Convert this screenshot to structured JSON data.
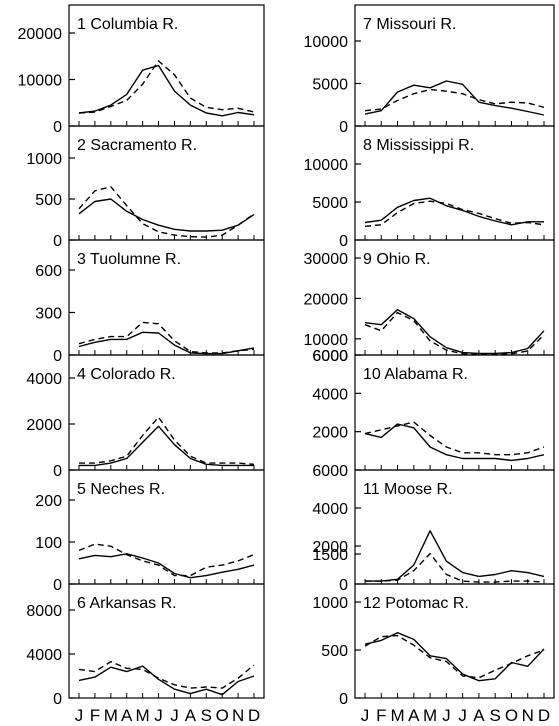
{
  "months": [
    "J",
    "F",
    "M",
    "A",
    "M",
    "J",
    "J",
    "A",
    "S",
    "O",
    "N",
    "D"
  ],
  "chart_data": [
    {
      "type": "line",
      "title": "1 Columbia R.",
      "ylim": [
        0,
        20000
      ],
      "yticks": [
        "0",
        "10000",
        "20000"
      ],
      "series": [
        {
          "style": "solid",
          "values": [
            2800,
            3200,
            4500,
            6800,
            12000,
            13000,
            7500,
            4500,
            2800,
            2200,
            2900,
            2400
          ]
        },
        {
          "style": "dashed",
          "values": [
            2800,
            3000,
            4200,
            5500,
            9000,
            14000,
            11000,
            6000,
            4000,
            3500,
            3800,
            3000
          ]
        }
      ]
    },
    {
      "type": "line",
      "title": "2 Sacramento R.",
      "ylim": [
        0,
        1000
      ],
      "yticks": [
        "0",
        "500",
        "1000"
      ],
      "series": [
        {
          "style": "solid",
          "values": [
            320,
            470,
            500,
            350,
            250,
            180,
            130,
            110,
            110,
            120,
            180,
            310
          ]
        },
        {
          "style": "dashed",
          "values": [
            380,
            600,
            650,
            420,
            200,
            100,
            60,
            40,
            35,
            60,
            180,
            320
          ]
        }
      ]
    },
    {
      "type": "line",
      "title": "3 Tuolumne R.",
      "ylim": [
        0,
        600
      ],
      "yticks": [
        "0",
        "300",
        "600"
      ],
      "series": [
        {
          "style": "solid",
          "values": [
            60,
            90,
            110,
            110,
            160,
            155,
            70,
            15,
            10,
            10,
            30,
            50
          ]
        },
        {
          "style": "dashed",
          "values": [
            80,
            110,
            130,
            130,
            230,
            220,
            100,
            25,
            15,
            15,
            30,
            40
          ]
        }
      ]
    },
    {
      "type": "line",
      "title": "4 Colorado R.",
      "ylim": [
        0,
        4000
      ],
      "yticks": [
        "0",
        "2000",
        "4000"
      ],
      "series": [
        {
          "style": "solid",
          "values": [
            200,
            200,
            300,
            500,
            1200,
            1900,
            1100,
            500,
            250,
            200,
            200,
            200
          ]
        },
        {
          "style": "dashed",
          "values": [
            300,
            300,
            400,
            600,
            1500,
            2300,
            1300,
            600,
            300,
            300,
            300,
            250
          ]
        }
      ]
    },
    {
      "type": "line",
      "title": "5 Neches R.",
      "ylim": [
        0,
        200
      ],
      "yticks": [
        "0",
        "100",
        "200"
      ],
      "series": [
        {
          "style": "solid",
          "values": [
            60,
            68,
            65,
            72,
            62,
            50,
            25,
            15,
            20,
            28,
            35,
            45
          ]
        },
        {
          "style": "dashed",
          "values": [
            80,
            95,
            90,
            70,
            55,
            45,
            20,
            20,
            40,
            45,
            55,
            70
          ]
        }
      ]
    },
    {
      "type": "line",
      "title": "6 Arkansas R.",
      "ylim": [
        0,
        8000
      ],
      "yticks": [
        "0",
        "4000",
        "8000"
      ],
      "series": [
        {
          "style": "solid",
          "values": [
            1600,
            1900,
            2800,
            2400,
            2900,
            1700,
            800,
            400,
            800,
            300,
            1500,
            2000
          ]
        },
        {
          "style": "dashed",
          "values": [
            2600,
            2400,
            3300,
            2700,
            2600,
            1800,
            1200,
            900,
            1000,
            900,
            1800,
            3000
          ]
        }
      ]
    },
    {
      "type": "line",
      "title": "7 Missouri R.",
      "ylim": [
        0,
        10000
      ],
      "yticks": [
        "0",
        "5000",
        "10000"
      ],
      "series": [
        {
          "style": "solid",
          "values": [
            1400,
            1800,
            4000,
            4800,
            4500,
            5300,
            4900,
            2800,
            2400,
            2100,
            1700,
            1300
          ]
        },
        {
          "style": "dashed",
          "values": [
            1800,
            2000,
            3000,
            3800,
            4300,
            4100,
            3800,
            3100,
            2600,
            2800,
            2700,
            2200
          ]
        }
      ]
    },
    {
      "type": "line",
      "title": "8 Mississippi R.",
      "ylim": [
        0,
        10000
      ],
      "yticks": [
        "0",
        "5000",
        "10000"
      ],
      "series": [
        {
          "style": "solid",
          "values": [
            2300,
            2600,
            4300,
            5200,
            5500,
            4500,
            3900,
            3100,
            2500,
            2000,
            2400,
            2400
          ]
        },
        {
          "style": "dashed",
          "values": [
            1800,
            2000,
            3600,
            4800,
            5100,
            4800,
            4000,
            3500,
            2800,
            2200,
            2300,
            2000
          ]
        }
      ]
    },
    {
      "type": "line",
      "title": "9 Ohio R.",
      "ylim": [
        6000,
        30000
      ],
      "yticks": [
        "6000",
        "10000",
        "20000",
        "30000"
      ],
      "series": [
        {
          "style": "solid",
          "values": [
            14000,
            13500,
            17200,
            15000,
            10500,
            7800,
            6600,
            6400,
            6400,
            6600,
            7600,
            12000
          ]
        },
        {
          "style": "dashed",
          "values": [
            13500,
            12000,
            16500,
            14500,
            9500,
            7200,
            6300,
            6100,
            6200,
            6300,
            7000,
            11000
          ]
        }
      ]
    },
    {
      "type": "line",
      "title": "10 Alabama R.",
      "ylim": [
        0,
        6000
      ],
      "yticks": [
        "2000",
        "4000",
        "6000"
      ],
      "series": [
        {
          "style": "solid",
          "values": [
            1900,
            1700,
            2400,
            2200,
            1200,
            800,
            600,
            600,
            600,
            500,
            600,
            800
          ]
        },
        {
          "style": "dashed",
          "values": [
            1900,
            2100,
            2300,
            2500,
            1800,
            1200,
            900,
            900,
            800,
            800,
            900,
            1200
          ]
        }
      ]
    },
    {
      "type": "line",
      "title": "11 Moose R.",
      "ylim": [
        0,
        6000
      ],
      "yticks": [
        "0",
        "2000",
        "4000",
        "6000"
      ],
      "series": [
        {
          "style": "solid",
          "values": [
            150,
            150,
            250,
            1000,
            2800,
            1200,
            600,
            400,
            500,
            700,
            600,
            400
          ]
        },
        {
          "style": "dashed",
          "values": [
            150,
            150,
            200,
            700,
            1600,
            500,
            150,
            100,
            100,
            150,
            150,
            100
          ]
        }
      ]
    },
    {
      "type": "line",
      "title": "12 Potomac R.",
      "ylim": [
        0,
        1500
      ],
      "yticks": [
        "0",
        "500",
        "1000",
        "1500"
      ],
      "series": [
        {
          "style": "solid",
          "values": [
            560,
            600,
            680,
            610,
            440,
            410,
            250,
            180,
            200,
            370,
            330,
            510
          ]
        },
        {
          "style": "dashed",
          "values": [
            540,
            640,
            650,
            550,
            420,
            380,
            230,
            210,
            290,
            360,
            440,
            500
          ]
        }
      ]
    }
  ]
}
